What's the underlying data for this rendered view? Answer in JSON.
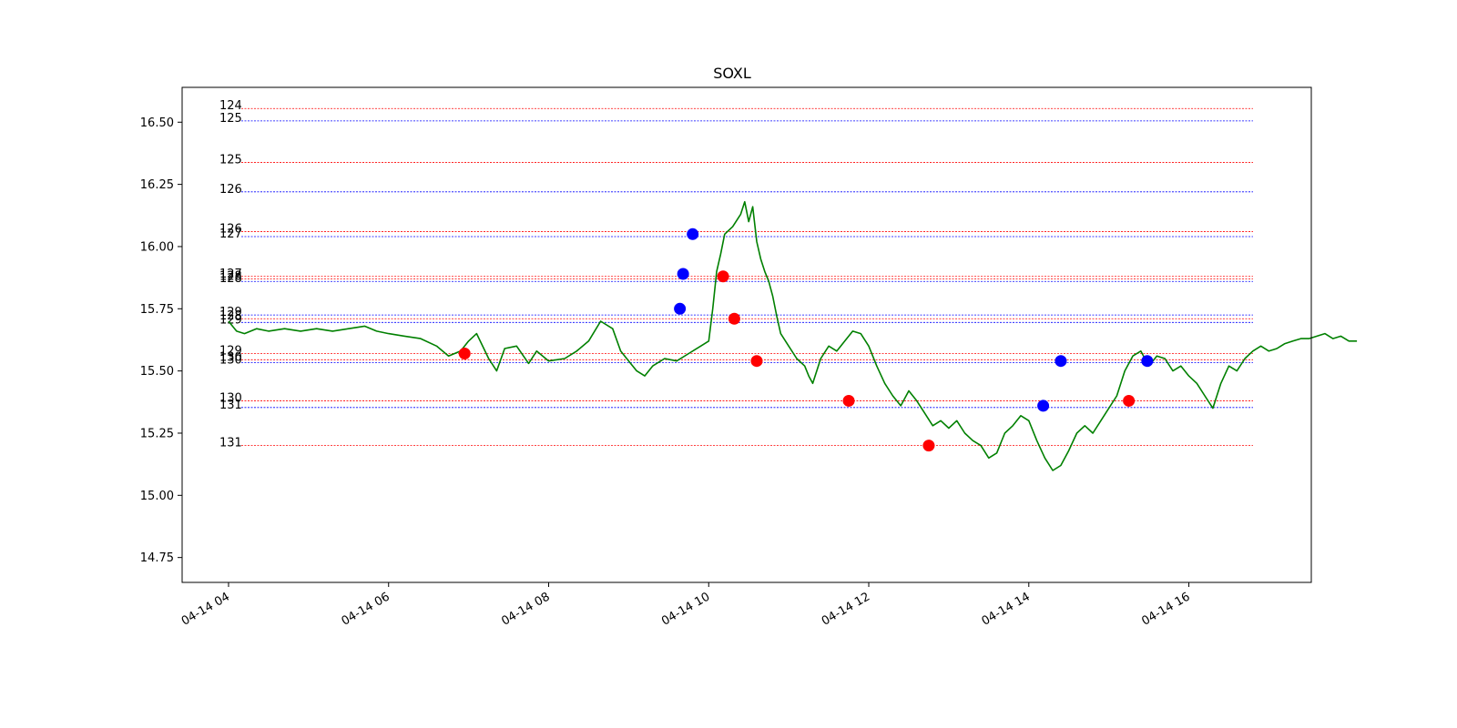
{
  "chart_data": {
    "type": "line",
    "title": "SOXL",
    "xlabel": "",
    "ylabel": "",
    "x_unit": "hours (time of day, 2025-04-14)",
    "xlim": [
      3.42,
      17.53
    ],
    "ylim": [
      14.65,
      16.64
    ],
    "x_ticks": [
      {
        "value": 4,
        "label": "04-14 04"
      },
      {
        "value": 6,
        "label": "04-14 06"
      },
      {
        "value": 8,
        "label": "04-14 08"
      },
      {
        "value": 10,
        "label": "04-14 10"
      },
      {
        "value": 12,
        "label": "04-14 12"
      },
      {
        "value": 14,
        "label": "04-14 14"
      },
      {
        "value": 16,
        "label": "04-14 16"
      }
    ],
    "y_ticks": [
      {
        "value": 14.75,
        "label": "14.75"
      },
      {
        "value": 15.0,
        "label": "15.00"
      },
      {
        "value": 15.25,
        "label": "15.25"
      },
      {
        "value": 15.5,
        "label": "15.50"
      },
      {
        "value": 15.75,
        "label": "15.75"
      },
      {
        "value": 16.0,
        "label": "16.00"
      },
      {
        "value": 16.25,
        "label": "16.25"
      },
      {
        "value": 16.5,
        "label": "16.50"
      }
    ],
    "grid": false,
    "legend": "none",
    "series": [
      {
        "color": "#008000",
        "points": [
          [
            4.0,
            15.7
          ],
          [
            4.1,
            15.66
          ],
          [
            4.2,
            15.65
          ],
          [
            4.35,
            15.67
          ],
          [
            4.5,
            15.66
          ],
          [
            4.7,
            15.67
          ],
          [
            4.9,
            15.66
          ],
          [
            5.1,
            15.67
          ],
          [
            5.3,
            15.66
          ],
          [
            5.5,
            15.67
          ],
          [
            5.7,
            15.68
          ],
          [
            5.85,
            15.66
          ],
          [
            6.0,
            15.65
          ],
          [
            6.2,
            15.64
          ],
          [
            6.4,
            15.63
          ],
          [
            6.6,
            15.6
          ],
          [
            6.75,
            15.56
          ],
          [
            6.9,
            15.58
          ],
          [
            7.0,
            15.62
          ],
          [
            7.1,
            15.65
          ],
          [
            7.25,
            15.55
          ],
          [
            7.35,
            15.5
          ],
          [
            7.45,
            15.59
          ],
          [
            7.6,
            15.6
          ],
          [
            7.75,
            15.53
          ],
          [
            7.85,
            15.58
          ],
          [
            8.0,
            15.54
          ],
          [
            8.2,
            15.55
          ],
          [
            8.35,
            15.58
          ],
          [
            8.5,
            15.62
          ],
          [
            8.65,
            15.7
          ],
          [
            8.8,
            15.67
          ],
          [
            8.9,
            15.58
          ],
          [
            9.0,
            15.54
          ],
          [
            9.1,
            15.5
          ],
          [
            9.2,
            15.48
          ],
          [
            9.3,
            15.52
          ],
          [
            9.45,
            15.55
          ],
          [
            9.6,
            15.54
          ],
          [
            9.75,
            15.57
          ],
          [
            9.9,
            15.6
          ],
          [
            10.0,
            15.62
          ],
          [
            10.05,
            15.75
          ],
          [
            10.1,
            15.9
          ],
          [
            10.15,
            15.97
          ],
          [
            10.2,
            16.05
          ],
          [
            10.3,
            16.08
          ],
          [
            10.4,
            16.13
          ],
          [
            10.45,
            16.18
          ],
          [
            10.5,
            16.1
          ],
          [
            10.55,
            16.16
          ],
          [
            10.6,
            16.02
          ],
          [
            10.65,
            15.95
          ],
          [
            10.7,
            15.9
          ],
          [
            10.75,
            15.86
          ],
          [
            10.8,
            15.8
          ],
          [
            10.85,
            15.72
          ],
          [
            10.9,
            15.65
          ],
          [
            11.0,
            15.6
          ],
          [
            11.1,
            15.55
          ],
          [
            11.2,
            15.52
          ],
          [
            11.25,
            15.48
          ],
          [
            11.3,
            15.45
          ],
          [
            11.4,
            15.55
          ],
          [
            11.5,
            15.6
          ],
          [
            11.6,
            15.58
          ],
          [
            11.7,
            15.62
          ],
          [
            11.8,
            15.66
          ],
          [
            11.9,
            15.65
          ],
          [
            12.0,
            15.6
          ],
          [
            12.1,
            15.52
          ],
          [
            12.2,
            15.45
          ],
          [
            12.3,
            15.4
          ],
          [
            12.4,
            15.36
          ],
          [
            12.5,
            15.42
          ],
          [
            12.6,
            15.38
          ],
          [
            12.7,
            15.33
          ],
          [
            12.8,
            15.28
          ],
          [
            12.9,
            15.3
          ],
          [
            13.0,
            15.27
          ],
          [
            13.1,
            15.3
          ],
          [
            13.2,
            15.25
          ],
          [
            13.3,
            15.22
          ],
          [
            13.4,
            15.2
          ],
          [
            13.5,
            15.15
          ],
          [
            13.6,
            15.17
          ],
          [
            13.7,
            15.25
          ],
          [
            13.8,
            15.28
          ],
          [
            13.9,
            15.32
          ],
          [
            14.0,
            15.3
          ],
          [
            14.1,
            15.22
          ],
          [
            14.2,
            15.15
          ],
          [
            14.3,
            15.1
          ],
          [
            14.4,
            15.12
          ],
          [
            14.5,
            15.18
          ],
          [
            14.6,
            15.25
          ],
          [
            14.7,
            15.28
          ],
          [
            14.8,
            15.25
          ],
          [
            14.9,
            15.3
          ],
          [
            15.0,
            15.35
          ],
          [
            15.1,
            15.4
          ],
          [
            15.2,
            15.5
          ],
          [
            15.3,
            15.56
          ],
          [
            15.4,
            15.58
          ],
          [
            15.5,
            15.52
          ],
          [
            15.6,
            15.56
          ],
          [
            15.7,
            15.55
          ],
          [
            15.8,
            15.5
          ],
          [
            15.9,
            15.52
          ],
          [
            16.0,
            15.48
          ],
          [
            16.1,
            15.45
          ],
          [
            16.2,
            15.4
          ],
          [
            16.3,
            15.35
          ],
          [
            16.4,
            15.45
          ],
          [
            16.5,
            15.52
          ],
          [
            16.6,
            15.5
          ],
          [
            16.7,
            15.55
          ],
          [
            16.8,
            15.58
          ],
          [
            16.9,
            15.6
          ],
          [
            17.0,
            15.58
          ],
          [
            17.1,
            15.59
          ],
          [
            17.2,
            15.61
          ],
          [
            17.3,
            15.62
          ],
          [
            17.4,
            15.63
          ],
          [
            17.5,
            15.63
          ],
          [
            17.6,
            15.64
          ],
          [
            17.7,
            15.65
          ],
          [
            17.8,
            15.63
          ],
          [
            17.9,
            15.64
          ],
          [
            18.0,
            15.62
          ],
          [
            18.1,
            15.62
          ]
        ]
      }
    ],
    "levels": [
      {
        "y": 16.555,
        "label": "124",
        "color": "#ff0000"
      },
      {
        "y": 16.505,
        "label": "125",
        "color": "#0000ff"
      },
      {
        "y": 16.338,
        "label": "125",
        "color": "#ff0000"
      },
      {
        "y": 16.22,
        "label": "126",
        "color": "#0000ff"
      },
      {
        "y": 16.06,
        "label": "126",
        "color": "#ff0000"
      },
      {
        "y": 16.04,
        "label": "127",
        "color": "#0000ff"
      },
      {
        "y": 15.88,
        "label": "127",
        "color": "#ff0000"
      },
      {
        "y": 15.87,
        "label": "128",
        "color": "#ff0000"
      },
      {
        "y": 15.86,
        "label": "128",
        "color": "#0000ff"
      },
      {
        "y": 15.725,
        "label": "129",
        "color": "#0000ff"
      },
      {
        "y": 15.71,
        "label": "128",
        "color": "#ff0000"
      },
      {
        "y": 15.695,
        "label": "129",
        "color": "#0000ff"
      },
      {
        "y": 15.57,
        "label": "129",
        "color": "#ff0000"
      },
      {
        "y": 15.545,
        "label": "130",
        "color": "#ff0000"
      },
      {
        "y": 15.533,
        "label": "130",
        "color": "#0000ff"
      },
      {
        "y": 15.38,
        "label": "130",
        "color": "#ff0000"
      },
      {
        "y": 15.353,
        "label": "131",
        "color": "#0000ff"
      },
      {
        "y": 15.2,
        "label": "131",
        "color": "#ff0000"
      }
    ],
    "markers": [
      {
        "x": 6.95,
        "y": 15.57,
        "color": "#ff0000"
      },
      {
        "x": 9.64,
        "y": 15.75,
        "color": "#0000ff"
      },
      {
        "x": 9.68,
        "y": 15.89,
        "color": "#0000ff"
      },
      {
        "x": 9.8,
        "y": 16.05,
        "color": "#0000ff"
      },
      {
        "x": 10.18,
        "y": 15.88,
        "color": "#ff0000"
      },
      {
        "x": 10.32,
        "y": 15.71,
        "color": "#ff0000"
      },
      {
        "x": 10.6,
        "y": 15.54,
        "color": "#ff0000"
      },
      {
        "x": 11.75,
        "y": 15.38,
        "color": "#ff0000"
      },
      {
        "x": 12.75,
        "y": 15.2,
        "color": "#ff0000"
      },
      {
        "x": 14.18,
        "y": 15.36,
        "color": "#0000ff"
      },
      {
        "x": 14.4,
        "y": 15.54,
        "color": "#0000ff"
      },
      {
        "x": 15.25,
        "y": 15.38,
        "color": "#ff0000"
      },
      {
        "x": 15.48,
        "y": 15.54,
        "color": "#0000ff"
      }
    ]
  }
}
